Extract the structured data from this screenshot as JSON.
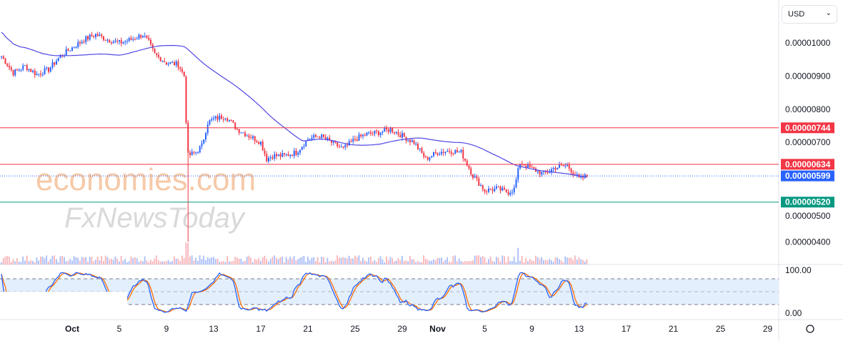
{
  "currency_select": {
    "value": "USD"
  },
  "watermark": {
    "line1": "economies.com",
    "line2": "FxNewsToday"
  },
  "colors": {
    "up": "#2962ff",
    "down": "#f23645",
    "sma": "#5046e5",
    "resistance": "#f23645",
    "support": "#089981",
    "current": "#2962ff",
    "stoch_k": "#2962ff",
    "stoch_d": "#ff6d00",
    "band": "#e3effd"
  },
  "chart_data": {
    "type": "candlestick",
    "price_unit_scale": "1e-8",
    "y_ticks": [
      "0.00001000",
      "0.00000900",
      "0.00000800",
      "0.00000700",
      "0.00000500",
      "0.00000400"
    ],
    "y_tick_values": [
      1000,
      900,
      800,
      700,
      500,
      400
    ],
    "ylim": [
      370,
      1080
    ],
    "x_ticks": [
      {
        "label": "Oct",
        "day": 0
      },
      {
        "label": "5",
        "day": 4
      },
      {
        "label": "9",
        "day": 8
      },
      {
        "label": "13",
        "day": 12
      },
      {
        "label": "17",
        "day": 16
      },
      {
        "label": "21",
        "day": 20
      },
      {
        "label": "25",
        "day": 24
      },
      {
        "label": "29",
        "day": 28
      },
      {
        "label": "Nov",
        "day": 31
      },
      {
        "label": "5",
        "day": 35
      },
      {
        "label": "9",
        "day": 39
      },
      {
        "label": "13",
        "day": 43
      },
      {
        "label": "17",
        "day": 47
      },
      {
        "label": "21",
        "day": 51
      },
      {
        "label": "25",
        "day": 55
      },
      {
        "label": "29",
        "day": 59
      }
    ],
    "close_keypoints_day_price": [
      [
        -6,
        960
      ],
      [
        -5,
        910
      ],
      [
        -4,
        930
      ],
      [
        -3,
        905
      ],
      [
        -2,
        920
      ],
      [
        -1,
        960
      ],
      [
        0,
        985
      ],
      [
        1,
        1010
      ],
      [
        2,
        1025
      ],
      [
        3,
        1010
      ],
      [
        4,
        1000
      ],
      [
        5,
        1010
      ],
      [
        6,
        1025
      ],
      [
        6.5,
        1000
      ],
      [
        7,
        965
      ],
      [
        8,
        940
      ],
      [
        9,
        935
      ],
      [
        9.5,
        900
      ],
      [
        9.8,
        660
      ],
      [
        10.5,
        670
      ],
      [
        11,
        690
      ],
      [
        11.5,
        760
      ],
      [
        12,
        770
      ],
      [
        13,
        780
      ],
      [
        14,
        740
      ],
      [
        15,
        720
      ],
      [
        16,
        700
      ],
      [
        16.5,
        650
      ],
      [
        17,
        660
      ],
      [
        18,
        660
      ],
      [
        19,
        670
      ],
      [
        20,
        710
      ],
      [
        21,
        720
      ],
      [
        22,
        700
      ],
      [
        23,
        680
      ],
      [
        24,
        710
      ],
      [
        25,
        725
      ],
      [
        26,
        730
      ],
      [
        27,
        740
      ],
      [
        28,
        720
      ],
      [
        29,
        700
      ],
      [
        30,
        650
      ],
      [
        31,
        670
      ],
      [
        32,
        675
      ],
      [
        33,
        670
      ],
      [
        34,
        600
      ],
      [
        35,
        555
      ],
      [
        36,
        560
      ],
      [
        37,
        550
      ],
      [
        37.5,
        560
      ],
      [
        38,
        640
      ],
      [
        39,
        620
      ],
      [
        40,
        605
      ],
      [
        41,
        625
      ],
      [
        42,
        630
      ],
      [
        42.5,
        610
      ],
      [
        43,
        590
      ],
      [
        43.7,
        599
      ]
    ],
    "lines": [
      {
        "label": "0.00000744",
        "value": 744,
        "kind": "resistance"
      },
      {
        "label": "0.00000634",
        "value": 634,
        "kind": "resistance"
      },
      {
        "label": "0.00000599",
        "value": 599,
        "kind": "current"
      },
      {
        "label": "0.00000520",
        "value": 520,
        "kind": "support"
      }
    ],
    "indicator": {
      "type": "stochastic",
      "ticks": [
        "100.00",
        "0.00"
      ],
      "bands": [
        20,
        50,
        80
      ]
    }
  }
}
